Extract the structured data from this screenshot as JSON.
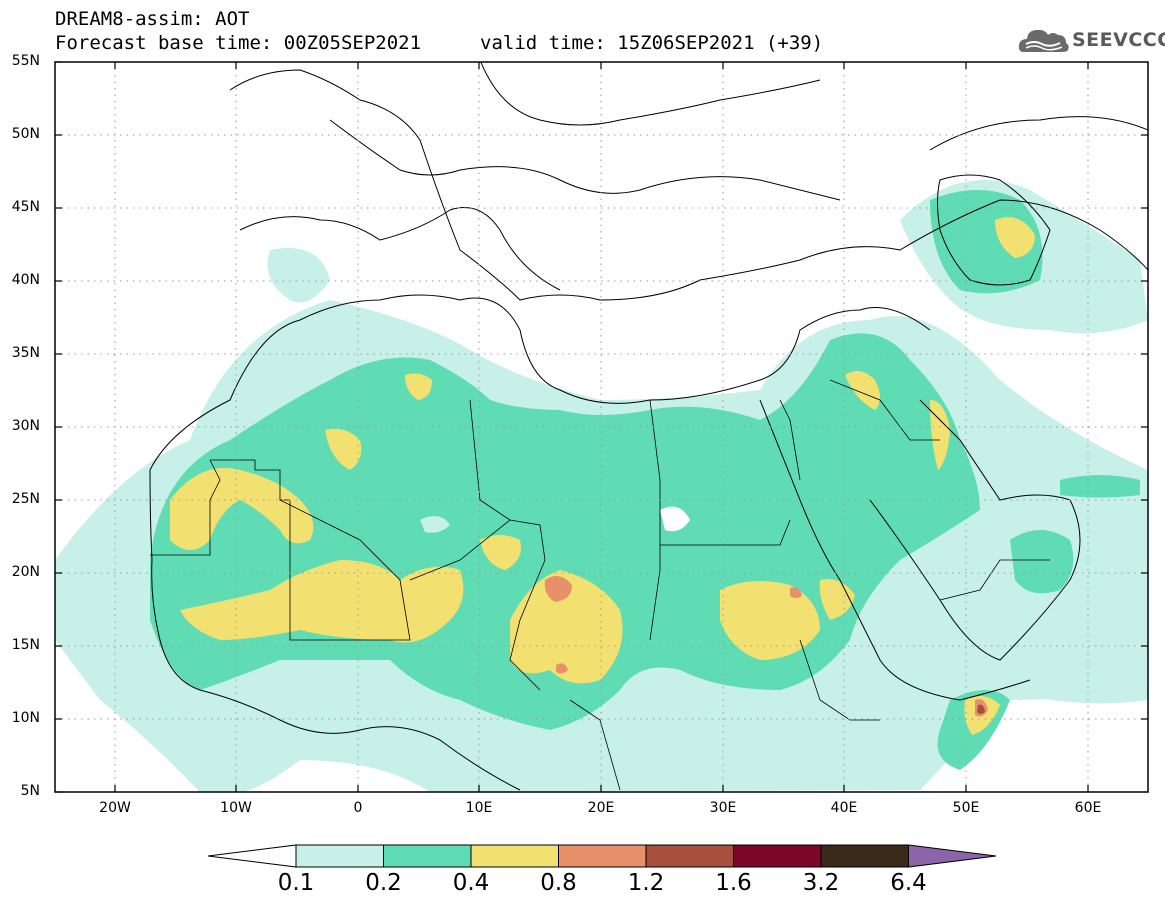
{
  "title_line1": "DREAM8-assim: AOT",
  "title_base": "Forecast base time: 00Z05SEP2021",
  "title_valid": "valid time: 15Z06SEP2021 (+39)",
  "logo_text": "SEEVCCC",
  "lat_labels": [
    "55N",
    "50N",
    "45N",
    "40N",
    "35N",
    "30N",
    "25N",
    "20N",
    "15N",
    "10N",
    "5N"
  ],
  "lon_labels": [
    "20W",
    "10W",
    "0",
    "10E",
    "20E",
    "30E",
    "40E",
    "50E",
    "60E"
  ],
  "colorbar": {
    "levels": [
      "0.1",
      "0.2",
      "0.4",
      "0.8",
      "1.2",
      "1.6",
      "3.2",
      "6.4"
    ],
    "colors": [
      "#c6f0e8",
      "#5fdcb4",
      "#f2e171",
      "#e8906a",
      "#a8503e",
      "#7a0628",
      "#3a2a1a",
      "#8c64aa"
    ]
  }
}
